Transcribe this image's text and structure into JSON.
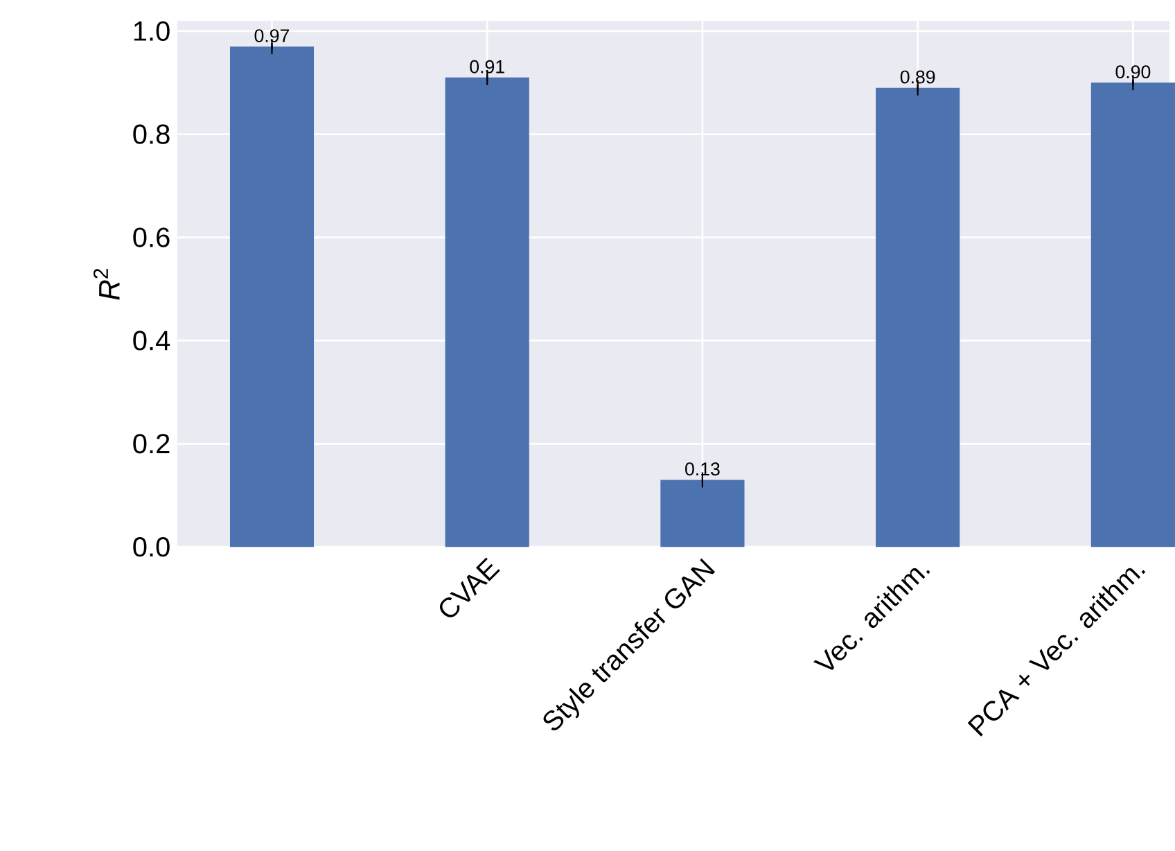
{
  "chart_data": {
    "type": "bar",
    "ylabel": "*R*$^{2}$",
    "categories": [
      null,
      "CVAE",
      "Style transfer GAN",
      "Vec. arithm.",
      "PCA + Vec. arithm."
    ],
    "values": [
      0.97,
      0.91,
      0.13,
      0.89,
      0.9
    ],
    "errors": [
      0.004,
      0.004,
      0.004,
      0.004,
      0.004
    ],
    "value_labels": [
      "0.97",
      "0.91",
      "0.13",
      "0.89",
      "0.90"
    ],
    "color": "#4c72b0",
    "ylim": [
      0,
      1.02
    ],
    "yticks": [
      {
        "value": 0,
        "label": "0.0"
      },
      {
        "value": 0.2,
        "label": "0.2"
      },
      {
        "value": 0.4,
        "label": "0.4"
      },
      {
        "value": 0.6,
        "label": "0.6"
      },
      {
        "value": 0.8,
        "label": "0.8"
      },
      {
        "value": 1.0,
        "label": "1.0"
      }
    ],
    "grid": true
  }
}
